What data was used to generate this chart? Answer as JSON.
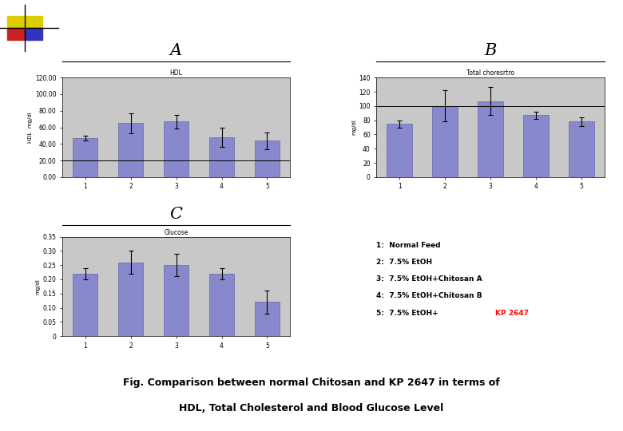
{
  "hdl": {
    "title": "HDL",
    "ylabel": "HDL  mg/dl",
    "categories": [
      "1",
      "2",
      "3",
      "4",
      "5"
    ],
    "values": [
      47,
      65,
      67,
      48,
      44
    ],
    "errors": [
      3,
      12,
      8,
      12,
      10
    ],
    "ylim": [
      0,
      120
    ],
    "yticks": [
      0.0,
      20.0,
      40.0,
      60.0,
      80.0,
      100.0,
      120.0
    ],
    "ytick_labels": [
      "0.00",
      "20.00",
      "40.00",
      "60.00",
      "80.00",
      "100.00",
      "120.00"
    ],
    "hline": 20
  },
  "tc": {
    "title": "Total choresrtro",
    "ylabel": "mg/dl",
    "categories": [
      "1",
      "2",
      "3",
      "4",
      "5"
    ],
    "values": [
      75,
      100,
      107,
      87,
      78
    ],
    "errors": [
      5,
      22,
      20,
      5,
      6
    ],
    "ylim": [
      0,
      140
    ],
    "yticks": [
      0,
      20,
      40,
      60,
      80,
      100,
      120,
      140
    ],
    "ytick_labels": [
      "0",
      "20",
      "40",
      "60",
      "80",
      "100",
      "120",
      "140"
    ],
    "hline": 100
  },
  "glucose": {
    "title": "Glucose",
    "ylabel": "mg/dl",
    "categories": [
      "1",
      "2",
      "3",
      "4",
      "5"
    ],
    "values": [
      0.22,
      0.26,
      0.25,
      0.22,
      0.12
    ],
    "errors": [
      0.02,
      0.04,
      0.04,
      0.02,
      0.04
    ],
    "ylim": [
      0,
      0.35
    ],
    "yticks": [
      0,
      0.05,
      0.1,
      0.15,
      0.2,
      0.25,
      0.3,
      0.35
    ],
    "ytick_labels": [
      "0",
      "0.05",
      "0.10",
      "0.15",
      "0.20",
      "0.25",
      "0.30",
      "0.35"
    ]
  },
  "bar_color": "#8888cc",
  "bar_edge_color": "#6666aa",
  "bg_color": "#c8c8c8",
  "label_A": "A",
  "label_B": "B",
  "label_C": "C",
  "fig_caption_line1": "Fig. Comparison between normal Chitosan and KP 2647 in terms of",
  "fig_caption_line2": "HDL, Total Cholesterol and Blood Glucose Level",
  "legend": [
    "1:  Normal Feed",
    "2:  7.5% EtOH",
    "3:  7.5% EtOH+Chitosan A",
    "4:  7.5% EtOH+Chitosan B"
  ],
  "legend_last_black": "5:  7.5% EtOH+",
  "legend_last_red": "KP 2647",
  "deco_colors": [
    "#ddcc00",
    "#ddcc00",
    "#cc2222",
    "#3333bb"
  ]
}
